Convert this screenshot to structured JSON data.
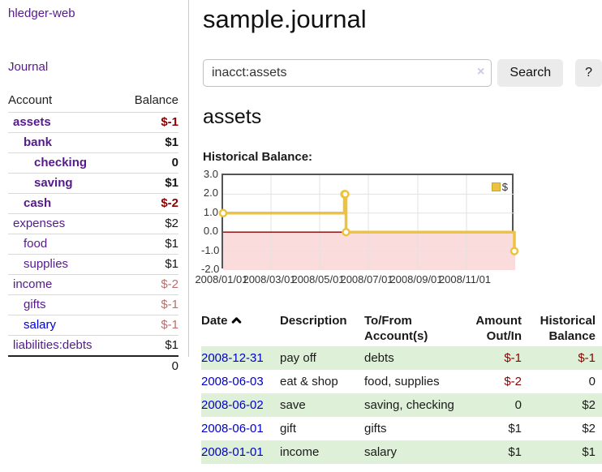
{
  "brand": "hledger-web",
  "nav": {
    "journal": "Journal"
  },
  "sidebar": {
    "headers": {
      "account": "Account",
      "balance": "Balance"
    },
    "accounts": [
      {
        "name": "assets",
        "depth": 0,
        "bold": true,
        "balance": "$-1",
        "neg": "strong"
      },
      {
        "name": "bank",
        "depth": 1,
        "bold": true,
        "balance": "$1",
        "neg": "none"
      },
      {
        "name": "checking",
        "depth": 2,
        "bold": true,
        "balance": "0",
        "neg": "none"
      },
      {
        "name": "saving",
        "depth": 2,
        "bold": true,
        "balance": "$1",
        "neg": "none"
      },
      {
        "name": "cash",
        "depth": 1,
        "bold": true,
        "balance": "$-2",
        "neg": "strong"
      },
      {
        "name": "expenses",
        "depth": 0,
        "bold": false,
        "balance": "$2",
        "neg": "none"
      },
      {
        "name": "food",
        "depth": 1,
        "bold": false,
        "balance": "$1",
        "neg": "none"
      },
      {
        "name": "supplies",
        "depth": 1,
        "bold": false,
        "balance": "$1",
        "neg": "none"
      },
      {
        "name": "income",
        "depth": 0,
        "bold": false,
        "balance": "$-2",
        "neg": "soft"
      },
      {
        "name": "gifts",
        "depth": 1,
        "bold": false,
        "balance": "$-1",
        "neg": "soft"
      },
      {
        "name": "salary",
        "depth": 1,
        "bold": false,
        "balance": "$-1",
        "neg": "soft",
        "link_color": "blue"
      },
      {
        "name": "liabilities:debts",
        "depth": 0,
        "bold": false,
        "balance": "$1",
        "neg": "none"
      }
    ],
    "total": "0"
  },
  "main": {
    "title": "sample.journal",
    "search": {
      "value": "inacct:assets",
      "clear": "×",
      "search_button": "Search",
      "help_button": "?"
    },
    "account_heading": "assets",
    "chart_title": "Historical Balance:"
  },
  "register": {
    "headers": {
      "date": "Date",
      "description": "Description",
      "tofrom": [
        "To/From",
        "Account(s)"
      ],
      "amount": [
        "Amount",
        "Out/In"
      ],
      "balance": [
        "Historical",
        "Balance"
      ]
    },
    "rows": [
      {
        "date": "2008-12-31",
        "description": "pay off",
        "accounts": "debts",
        "amount": "$-1",
        "amount_neg": true,
        "balance": "$-1",
        "balance_neg": true,
        "shaded": true
      },
      {
        "date": "2008-06-03",
        "description": "eat & shop",
        "accounts": "food, supplies",
        "amount": "$-2",
        "amount_neg": true,
        "balance": "0",
        "balance_neg": false,
        "shaded": false
      },
      {
        "date": "2008-06-02",
        "description": "save",
        "accounts": "saving, checking",
        "amount": "0",
        "amount_neg": false,
        "balance": "$2",
        "balance_neg": false,
        "shaded": true
      },
      {
        "date": "2008-06-01",
        "description": "gift",
        "accounts": "gifts",
        "amount": "$1",
        "amount_neg": false,
        "balance": "$2",
        "balance_neg": false,
        "shaded": false
      },
      {
        "date": "2008-01-01",
        "description": "income",
        "accounts": "salary",
        "amount": "$1",
        "amount_neg": false,
        "balance": "$1",
        "balance_neg": false,
        "shaded": true
      }
    ]
  },
  "chart_data": {
    "type": "line",
    "style": "step",
    "title": "Historical Balance:",
    "series": [
      {
        "name": "$",
        "points": [
          [
            "2008/01/01",
            1
          ],
          [
            "2008/06/01",
            2
          ],
          [
            "2008/06/02",
            2
          ],
          [
            "2008/06/03",
            0
          ],
          [
            "2008/12/31",
            -1
          ]
        ]
      }
    ],
    "x_ticks": [
      "2008/01/01",
      "2008/03/01",
      "2008/05/01",
      "2008/07/01",
      "2008/09/01",
      "2008/11/01"
    ],
    "x_range": [
      "2008/01/01",
      "2009/01/01"
    ],
    "y_ticks": [
      3.0,
      2.0,
      1.0,
      0.0,
      -1.0,
      -2.0
    ],
    "ylim": [
      -2,
      3
    ],
    "legend": "$",
    "legend_position": "top-right",
    "grid": true,
    "negative_region_shaded": true
  },
  "colors": {
    "link_purple": "#551a8b",
    "link_blue": "#0000cc",
    "negative_strong": "#8b0000",
    "negative_soft": "#b86e6e",
    "row_shade_green": "#dff0d8",
    "chart_line_gold": "#edc240",
    "chart_negative_pink": "#fbdcdc",
    "chart_zero_line": "#8b0000",
    "button_gray": "#ebebeb"
  }
}
